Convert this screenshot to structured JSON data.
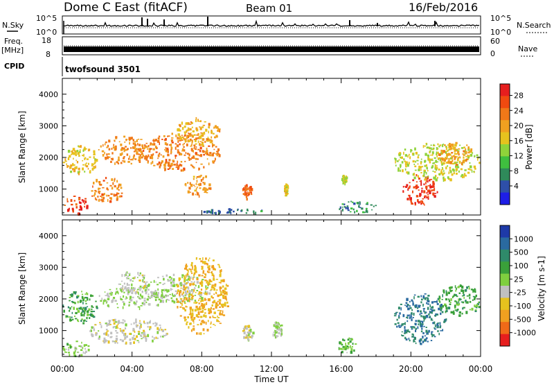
{
  "header": {
    "radar": "Dome C East (fitACF)",
    "beam": "Beam 01",
    "date": "16/Feb/2016"
  },
  "nsky": {
    "left_label": "N.Sky",
    "left_top": "10^5",
    "left_bottom": "10^0",
    "right_label": "N.Search",
    "right_top": "10^5",
    "right_bottom": "10^0"
  },
  "freq": {
    "left_label_1": "Freq.",
    "left_label_2": "[MHz]",
    "left_top": "18",
    "left_bottom": "8",
    "right_label": "Nave",
    "right_top": "60",
    "right_bottom": "0"
  },
  "cpid": {
    "label": "CPID",
    "value": "twofsound 3501"
  },
  "xaxis": {
    "title": "Time UT",
    "ticks": [
      "00:00",
      "04:00",
      "08:00",
      "12:00",
      "16:00",
      "20:00",
      "00:00"
    ]
  },
  "power_panel": {
    "ylabel": "Slant Range [km]",
    "yticks": [
      "1000",
      "2000",
      "3000",
      "4000"
    ],
    "colorbar_label": "Power [dB]",
    "colorbar_ticks": [
      "4",
      "8",
      "12",
      "16",
      "20",
      "24",
      "28"
    ],
    "colors": [
      "#1e1ee6",
      "#2e4fa8",
      "#2f8a5a",
      "#3fbf3f",
      "#8fd33a",
      "#e6c21e",
      "#f0a020",
      "#f07818",
      "#f04a10",
      "#e61e1e"
    ]
  },
  "velocity_panel": {
    "ylabel": "Slant Range [km]",
    "yticks": [
      "1000",
      "2000",
      "3000",
      "4000"
    ],
    "colorbar_label": "Velocity [m s-1]",
    "colorbar_ticks": [
      "1000",
      "500",
      "100",
      "25",
      "-25",
      "-100",
      "-500",
      "-1000"
    ],
    "colors": [
      "#1e3aa8",
      "#2a6aa0",
      "#2f8a6a",
      "#3aa03a",
      "#7fcf3f",
      "#c0c0c0",
      "#e6c21e",
      "#f0a020",
      "#f06a18",
      "#e61e1e"
    ]
  },
  "chart_data": [
    {
      "type": "heatmap",
      "title": "Power [dB]",
      "xlabel": "Time UT",
      "ylabel": "Slant Range [km]",
      "xlim": [
        0,
        24
      ],
      "ylim": [
        180,
        4500
      ],
      "clim": [
        0,
        30
      ],
      "blobs": [
        {
          "t0": 0.0,
          "t1": 1.5,
          "r0": 200,
          "r1": 800,
          "v": 26
        },
        {
          "t0": 0.0,
          "t1": 2.0,
          "r0": 1500,
          "r1": 2400,
          "v": 17
        },
        {
          "t0": 1.5,
          "t1": 3.5,
          "r0": 600,
          "r1": 1400,
          "v": 22
        },
        {
          "t0": 2.0,
          "t1": 5.0,
          "r0": 1800,
          "r1": 2700,
          "v": 21
        },
        {
          "t0": 4.5,
          "t1": 9.0,
          "r0": 1600,
          "r1": 2800,
          "v": 22
        },
        {
          "t0": 6.5,
          "t1": 9.0,
          "r0": 2400,
          "r1": 3300,
          "v": 19
        },
        {
          "t0": 7.0,
          "t1": 8.5,
          "r0": 800,
          "r1": 1500,
          "v": 20
        },
        {
          "t0": 8.0,
          "t1": 12.0,
          "r0": 250,
          "r1": 400,
          "v": 7
        },
        {
          "t0": 10.3,
          "t1": 10.9,
          "r0": 700,
          "r1": 1200,
          "v": 24
        },
        {
          "t0": 12.7,
          "t1": 12.9,
          "r0": 800,
          "r1": 1200,
          "v": 16
        },
        {
          "t0": 15.8,
          "t1": 18.0,
          "r0": 250,
          "r1": 650,
          "v": 7
        },
        {
          "t0": 16.0,
          "t1": 16.3,
          "r0": 1200,
          "r1": 1500,
          "v": 15
        },
        {
          "t0": 19.5,
          "t1": 21.5,
          "r0": 500,
          "r1": 1500,
          "v": 27
        },
        {
          "t0": 19.0,
          "t1": 24.0,
          "r0": 1300,
          "r1": 2500,
          "v": 15
        },
        {
          "t0": 21.5,
          "t1": 23.5,
          "r0": 1800,
          "r1": 2500,
          "v": 20
        }
      ]
    },
    {
      "type": "heatmap",
      "title": "Velocity [m s-1]",
      "xlabel": "Time UT",
      "ylabel": "Slant Range [km]",
      "xlim": [
        0,
        24
      ],
      "ylim": [
        180,
        4500
      ],
      "clim": [
        -1000,
        1000
      ],
      "blobs": [
        {
          "t0": 0.0,
          "t1": 1.5,
          "r0": 200,
          "r1": 700,
          "v": 80
        },
        {
          "t0": 0.0,
          "t1": 2.0,
          "r0": 1200,
          "r1": 2300,
          "v": 300
        },
        {
          "t0": 2.0,
          "t1": 6.0,
          "r0": 1700,
          "r1": 2400,
          "v": 0
        },
        {
          "t0": 4.5,
          "t1": 8.5,
          "r0": 1900,
          "r1": 2800,
          "v": 0
        },
        {
          "t0": 1.5,
          "t1": 6.0,
          "r0": 600,
          "r1": 1400,
          "v": -120
        },
        {
          "t0": 6.5,
          "t1": 9.5,
          "r0": 900,
          "r1": 3400,
          "v": -400
        },
        {
          "t0": 3.0,
          "t1": 5.0,
          "r0": 2200,
          "r1": 2900,
          "v": -60
        },
        {
          "t0": 10.3,
          "t1": 10.9,
          "r0": 700,
          "r1": 1200,
          "v": -150
        },
        {
          "t0": 12.0,
          "t1": 12.6,
          "r0": 800,
          "r1": 1300,
          "v": 20
        },
        {
          "t0": 15.8,
          "t1": 16.8,
          "r0": 300,
          "r1": 800,
          "v": 150
        },
        {
          "t0": 19.0,
          "t1": 22.0,
          "r0": 600,
          "r1": 2200,
          "v": 600
        },
        {
          "t0": 21.5,
          "t1": 24.0,
          "r0": 1500,
          "r1": 2500,
          "v": 300
        }
      ]
    }
  ]
}
